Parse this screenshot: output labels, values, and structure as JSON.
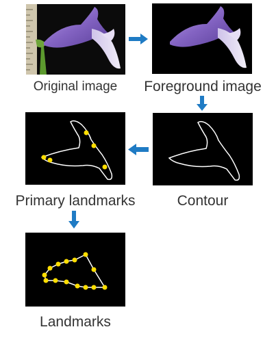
{
  "steps": {
    "original": "Original image",
    "foreground": "Foreground image",
    "contour": "Contour",
    "primary_landmarks": "Primary landmarks",
    "landmarks": "Landmarks"
  },
  "colors": {
    "background": "#ffffff",
    "panel": "#000000",
    "arrow": "#1f7bc4",
    "contour": "#ffffff",
    "landmark": "#ffde00",
    "petal": "#8a6bc8",
    "stem": "#4f8f2a",
    "scale": "#c8c0a8"
  },
  "icons": {
    "flow_arrow": "arrow-icon"
  }
}
